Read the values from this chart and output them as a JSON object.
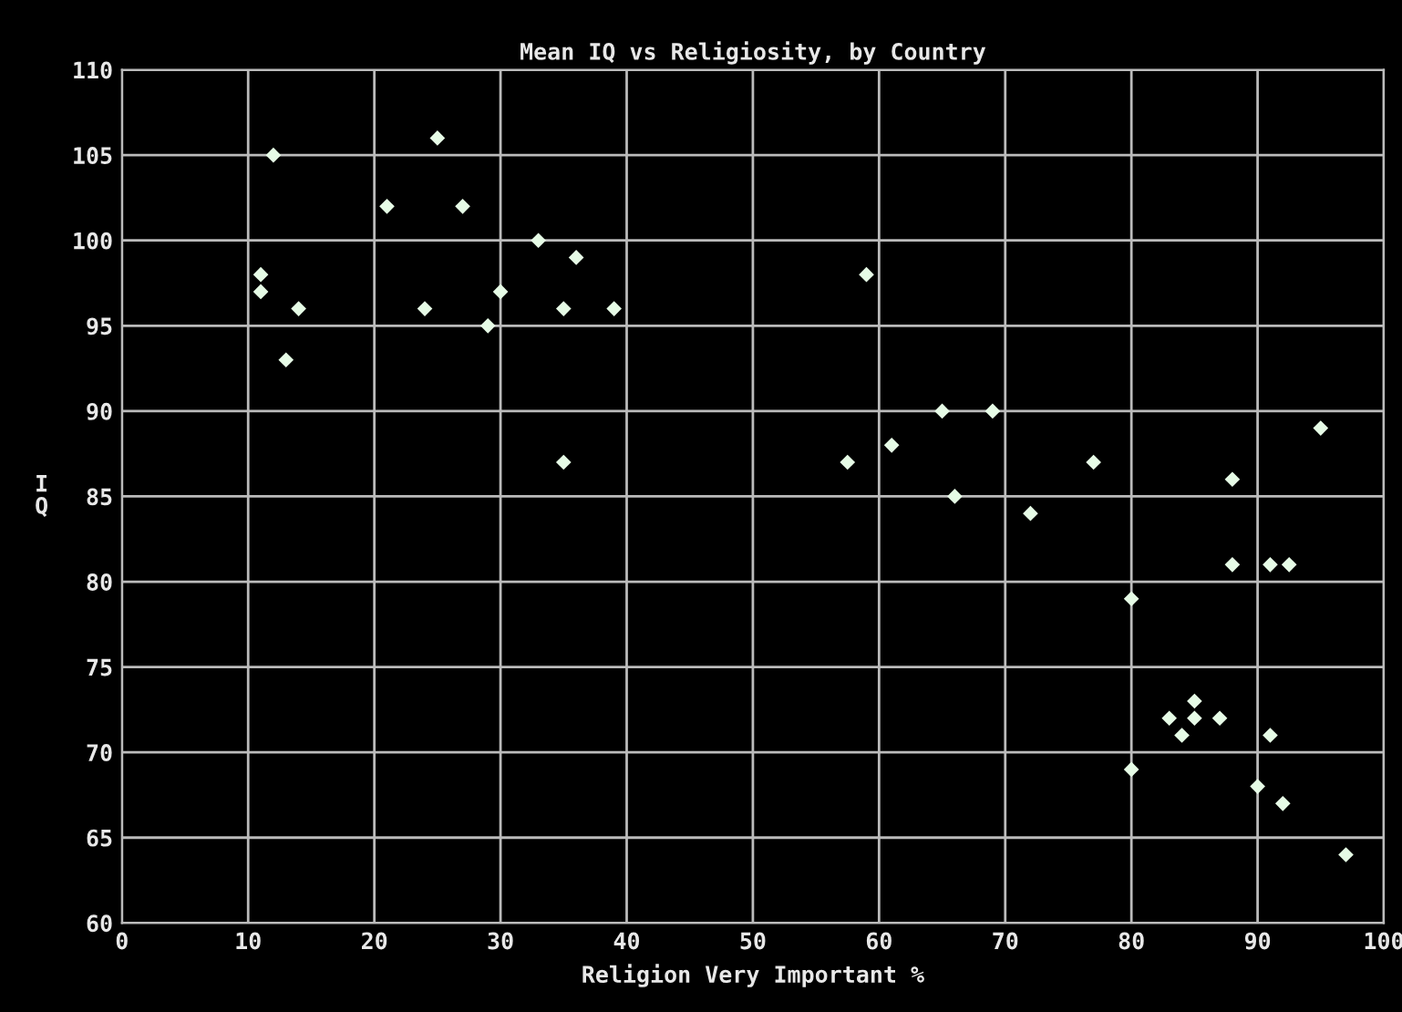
{
  "chart_data": {
    "type": "scatter",
    "title": "Mean IQ vs Religiosity, by Country",
    "xlabel": "Religion Very Important %",
    "ylabel": "IQ",
    "x": [
      12,
      25,
      21,
      27,
      33,
      36,
      11,
      11,
      14,
      24,
      30,
      35,
      39,
      29,
      13,
      35,
      59,
      65,
      69,
      61,
      57.5,
      77,
      95,
      66,
      72,
      88,
      88,
      91,
      92.5,
      80,
      85,
      83,
      85,
      87,
      84,
      91,
      80,
      90,
      92,
      97
    ],
    "series": [
      {
        "color": "#e6fbe6",
        "values": [
          105,
          106,
          102,
          102,
          100,
          99,
          98,
          97,
          96,
          96,
          97,
          96,
          96,
          95,
          93,
          87,
          98,
          90,
          90,
          88,
          87,
          87,
          89,
          85,
          84,
          86,
          81,
          81,
          81,
          79,
          73,
          72,
          72,
          72,
          71,
          71,
          69,
          68,
          67,
          64
        ]
      }
    ],
    "xlim": [
      0,
      100
    ],
    "ylim": [
      60,
      110
    ],
    "xticks": [
      0,
      10,
      20,
      30,
      40,
      50,
      60,
      70,
      80,
      90,
      100
    ],
    "yticks": [
      60,
      65,
      70,
      75,
      80,
      85,
      90,
      95,
      100,
      105,
      110
    ],
    "grid": true,
    "marker": "diamond"
  }
}
